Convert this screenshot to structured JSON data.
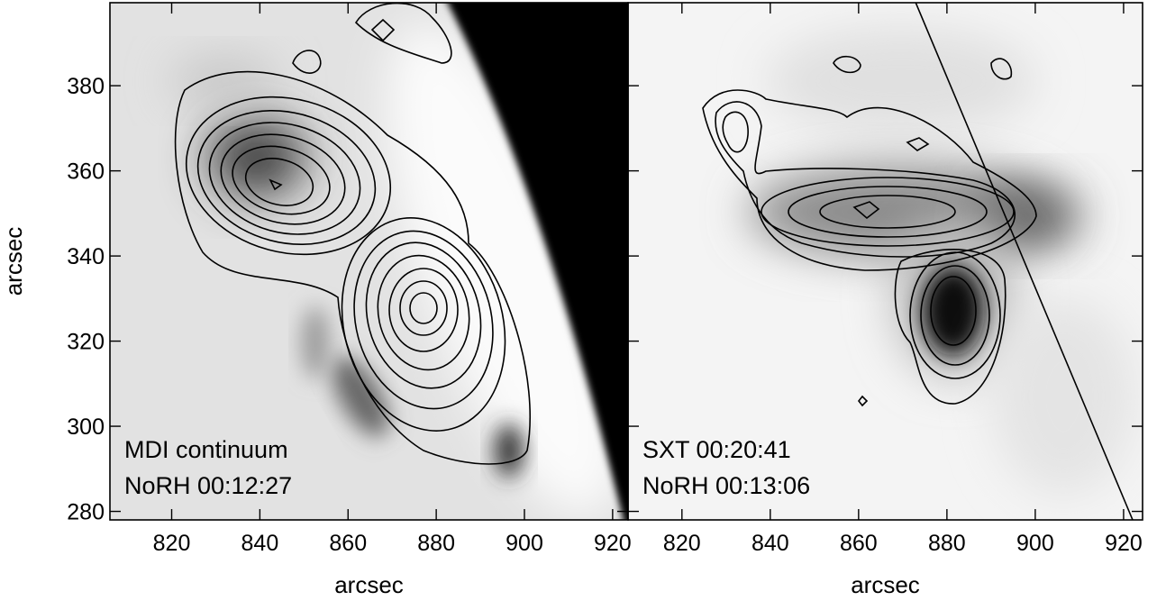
{
  "chart_data": [
    {
      "type": "image",
      "annotations": [
        "MDI continuum",
        "NoRH 00:12:27"
      ],
      "xlabel": "arcsec",
      "ylabel": "arcsec",
      "xlim": [
        806,
        923.5
      ],
      "ylim": [
        278,
        399.5
      ],
      "xticks": [
        820,
        840,
        860,
        880,
        900,
        920
      ],
      "yticks": [
        280,
        300,
        320,
        340,
        360,
        380
      ]
    },
    {
      "type": "image",
      "annotations": [
        "SXT 00:20:41",
        "NoRH 00:13:06"
      ],
      "xlabel": "arcsec",
      "xlim": [
        807.8,
        924.3
      ],
      "ylim": [
        278,
        399.5
      ],
      "xticks": [
        820,
        840,
        860,
        880,
        900,
        920
      ],
      "yticks": [
        280,
        300,
        320,
        340,
        360,
        380
      ],
      "ytick_labels": false
    }
  ]
}
